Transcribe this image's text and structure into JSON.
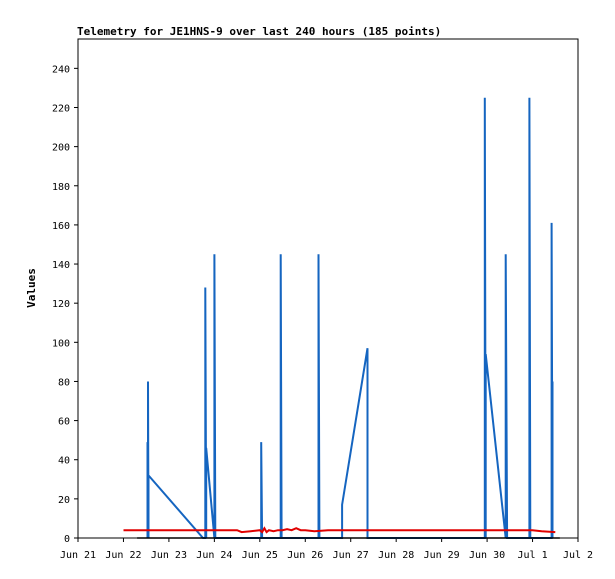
{
  "chart_data": {
    "type": "line",
    "title": "Telemetry for JE1HNS-9 over last 240 hours (185 points)",
    "xlabel": "",
    "ylabel": "Values",
    "ylim": [
      0,
      255
    ],
    "xlim": [
      "Jun 21",
      "Jul 2"
    ],
    "y_ticks": [
      0,
      20,
      40,
      60,
      80,
      100,
      120,
      140,
      160,
      180,
      200,
      220,
      240
    ],
    "x_ticks": [
      "Jun 21",
      "Jun 22",
      "Jun 23",
      "Jun 24",
      "Jun 25",
      "Jun 26",
      "Jun 27",
      "Jun 28",
      "Jun 29",
      "Jun 30",
      "Jul 1",
      "Jul 2"
    ],
    "grid": false,
    "legend": "none",
    "colors": {
      "blue": "#1565c0",
      "red": "#e00000",
      "black": "#000000"
    },
    "series": [
      {
        "color": "#1565c0",
        "x": [
          22.53,
          22.53,
          22.54,
          22.54,
          22.55,
          22.55,
          23.75,
          23.8,
          23.8,
          23.82,
          23.82,
          24.0,
          24.0,
          24.02,
          24.02,
          25.03,
          25.03,
          25.05,
          25.05,
          25.46,
          25.46,
          25.48,
          25.48,
          26.29,
          26.29,
          26.31,
          26.31,
          26.81,
          26.81,
          27.37,
          27.37,
          27.39,
          27.39,
          29.95,
          29.95,
          29.97,
          29.97,
          30.41,
          30.41,
          30.44,
          30.44,
          30.93,
          30.93,
          30.95,
          30.95,
          31.42,
          31.42,
          31.44,
          31.44
        ],
        "y": [
          0,
          49,
          0,
          80,
          0,
          32,
          0,
          0,
          128,
          0,
          46,
          0,
          145,
          0,
          0,
          0,
          49,
          0,
          0,
          0,
          145,
          0,
          0,
          0,
          145,
          0,
          0,
          0,
          17,
          97,
          0,
          0,
          0,
          0,
          225,
          0,
          94,
          0,
          145,
          0,
          0,
          0,
          225,
          0,
          0,
          0,
          161,
          0,
          80
        ]
      },
      {
        "color": "#e00000",
        "x": [
          22.0,
          22.5,
          23.0,
          23.5,
          24.0,
          24.5,
          24.6,
          24.8,
          25.0,
          25.05,
          25.1,
          25.15,
          25.2,
          25.3,
          25.4,
          25.5,
          25.6,
          25.7,
          25.8,
          25.9,
          26.0,
          26.2,
          26.5,
          27.0,
          27.5,
          28.0,
          28.5,
          29.0,
          29.5,
          30.0,
          30.5,
          31.0,
          31.2,
          31.5
        ],
        "y": [
          4,
          4,
          4,
          4,
          4,
          4,
          3,
          3.5,
          4,
          3,
          5,
          3,
          4,
          3.5,
          4,
          4,
          4.5,
          4,
          5,
          4,
          4,
          3.5,
          4,
          4,
          4,
          4,
          4,
          4,
          4,
          4,
          4,
          4,
          3.5,
          3
        ]
      },
      {
        "color": "#000000",
        "x": [
          22.3,
          31.6
        ],
        "y": [
          0,
          0
        ]
      }
    ]
  }
}
